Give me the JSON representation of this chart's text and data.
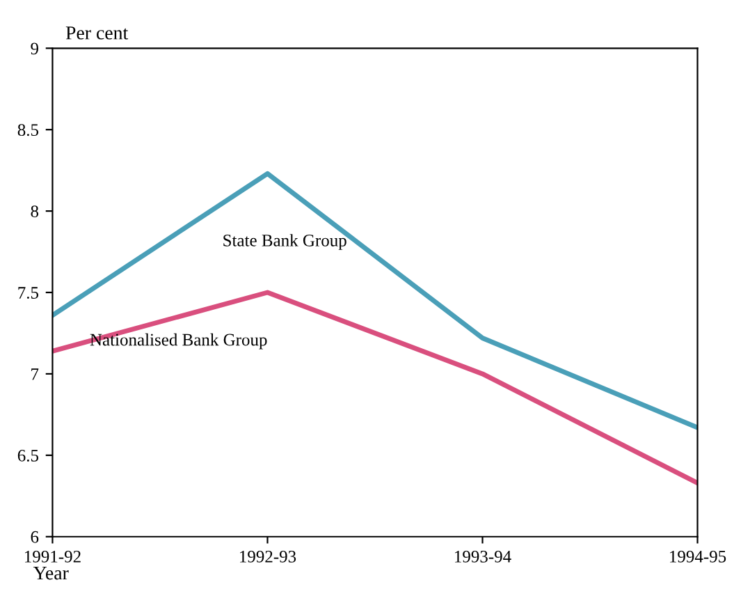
{
  "chart_data": {
    "type": "line",
    "xlabel": "Year",
    "ylabel": "Per cent",
    "categories": [
      "1991-92",
      "1992-93",
      "1993-94",
      "1994-95"
    ],
    "series": [
      {
        "name": "State Bank Group",
        "color": "#4a9fb8",
        "values": [
          7.36,
          8.23,
          7.22,
          6.67
        ]
      },
      {
        "name": "Nationalised Bank Group",
        "color": "#d94f7e",
        "values": [
          7.14,
          7.5,
          7.0,
          6.33
        ]
      }
    ],
    "ylim": [
      6,
      9
    ],
    "yticks": [
      6,
      6.5,
      7,
      7.5,
      8,
      8.5,
      9
    ],
    "grid": false
  }
}
